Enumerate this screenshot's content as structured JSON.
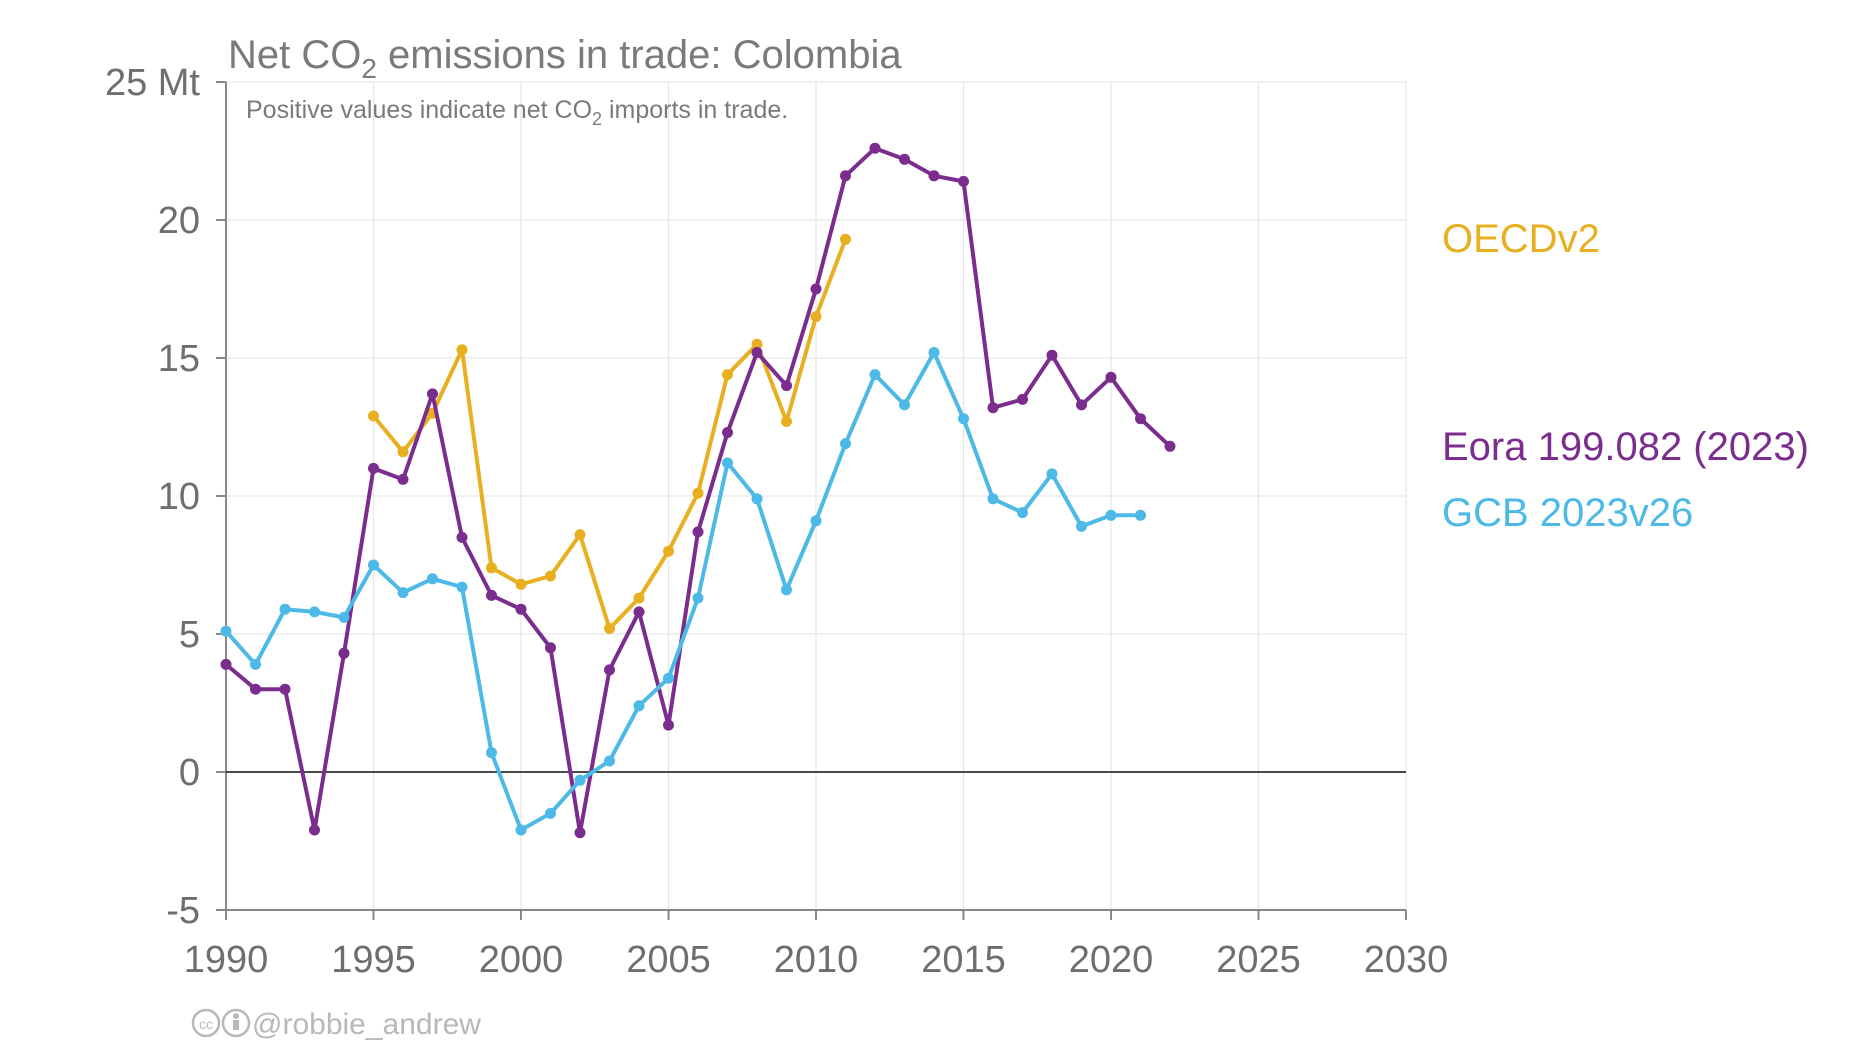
{
  "chart_data": {
    "type": "line",
    "title": {
      "prefix": "Net CO",
      "sub": "2",
      "suffix": " emissions in trade: Colombia"
    },
    "subtitle": {
      "prefix": "Positive values indicate net CO",
      "sub": "2",
      "suffix": " imports in trade."
    },
    "y_top_label": "25 Mt",
    "xlim": [
      1990,
      2030
    ],
    "ylim": [
      -5,
      25
    ],
    "xticks": [
      1990,
      1995,
      2000,
      2005,
      2010,
      2015,
      2020,
      2025,
      2030
    ],
    "yticks": [
      -5,
      0,
      5,
      10,
      15,
      20,
      25
    ],
    "ytick_labels": [
      "-5",
      "0",
      "5",
      "10",
      "15",
      "20",
      "25 Mt"
    ],
    "grid": true,
    "zero_line": true,
    "series": [
      {
        "name": "OECDv2",
        "color": "#E8B020",
        "x": [
          1995,
          1996,
          1997,
          1998,
          1999,
          2000,
          2001,
          2002,
          2003,
          2004,
          2005,
          2006,
          2007,
          2008,
          2009,
          2010,
          2011
        ],
        "values": [
          12.9,
          11.6,
          13.0,
          15.3,
          7.4,
          6.8,
          7.1,
          8.6,
          5.2,
          6.3,
          8.0,
          10.1,
          14.4,
          15.5,
          12.7,
          16.5,
          19.3
        ]
      },
      {
        "name": "Eora 199.082 (2023)",
        "color": "#7B2D8E",
        "x": [
          1990,
          1991,
          1992,
          1993,
          1994,
          1995,
          1996,
          1997,
          1998,
          1999,
          2000,
          2001,
          2002,
          2003,
          2004,
          2005,
          2006,
          2007,
          2008,
          2009,
          2010,
          2011,
          2012,
          2013,
          2014,
          2015,
          2016,
          2017,
          2018,
          2019,
          2020,
          2021,
          2022
        ],
        "values": [
          3.9,
          3.0,
          3.0,
          -2.1,
          4.3,
          11.0,
          10.6,
          13.7,
          8.5,
          6.4,
          5.9,
          4.5,
          -2.2,
          3.7,
          5.8,
          1.7,
          8.7,
          12.3,
          15.2,
          14.0,
          17.5,
          21.6,
          22.6,
          22.2,
          21.6,
          21.4,
          13.2,
          13.5,
          15.1,
          13.3,
          14.3,
          12.8,
          11.8
        ]
      },
      {
        "name": "GCB 2023v26",
        "color": "#4CB9E6",
        "x": [
          1990,
          1991,
          1992,
          1993,
          1994,
          1995,
          1996,
          1997,
          1998,
          1999,
          2000,
          2001,
          2002,
          2003,
          2004,
          2005,
          2006,
          2007,
          2008,
          2009,
          2010,
          2011,
          2012,
          2013,
          2014,
          2015,
          2016,
          2017,
          2018,
          2019,
          2020,
          2021
        ],
        "values": [
          5.1,
          3.9,
          5.9,
          5.8,
          5.6,
          7.5,
          6.5,
          7.0,
          6.7,
          0.7,
          -2.1,
          -1.5,
          -0.3,
          0.4,
          2.4,
          3.4,
          6.3,
          11.2,
          9.9,
          6.6,
          9.1,
          11.9,
          14.4,
          13.3,
          15.2,
          12.8,
          9.9,
          9.4,
          10.8,
          8.9,
          9.3,
          9.3
        ]
      }
    ],
    "credit": "@robbie_andrew"
  }
}
